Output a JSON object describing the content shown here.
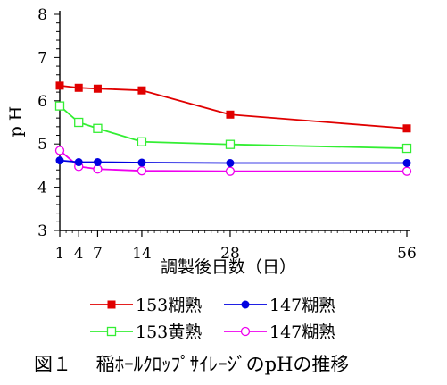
{
  "chart_data": {
    "type": "line",
    "title": "",
    "xlabel": "調製後日数（日）",
    "ylabel": "pH",
    "xlim": [
      1,
      56
    ],
    "ylim": [
      3,
      8
    ],
    "xticks": [
      "1",
      "4",
      "7",
      "14",
      "28",
      "56"
    ],
    "yticks": [
      "3",
      "4",
      "5",
      "6",
      "7",
      "8"
    ],
    "grid": false,
    "legend_position": "bottom",
    "series": [
      {
        "name": "153糊熟",
        "color": "#e00000",
        "marker": "filled-square",
        "x": [
          1,
          4,
          7,
          14,
          28,
          56
        ],
        "y": [
          6.35,
          6.3,
          6.28,
          6.24,
          5.68,
          5.36
        ]
      },
      {
        "name": "147糊熟",
        "color": "#0000e0",
        "marker": "filled-circle",
        "x": [
          1,
          4,
          7,
          14,
          28,
          56
        ],
        "y": [
          4.62,
          4.58,
          4.58,
          4.57,
          4.56,
          4.56
        ]
      },
      {
        "name": "153黄熟",
        "color": "#33ee33",
        "marker": "open-square",
        "x": [
          1,
          4,
          7,
          14,
          28,
          56
        ],
        "y": [
          5.88,
          5.5,
          5.36,
          5.05,
          4.99,
          4.9
        ]
      },
      {
        "name": "147糊熟",
        "color": "#ee00ee",
        "marker": "open-circle",
        "x": [
          1,
          4,
          7,
          14,
          28,
          56
        ],
        "y": [
          4.85,
          4.48,
          4.42,
          4.38,
          4.37,
          4.37
        ]
      }
    ]
  },
  "caption": "図１　 稲ﾎｰﾙｸﾛｯﾌﾟｻｲﾚｰｼﾞのpHの推移"
}
